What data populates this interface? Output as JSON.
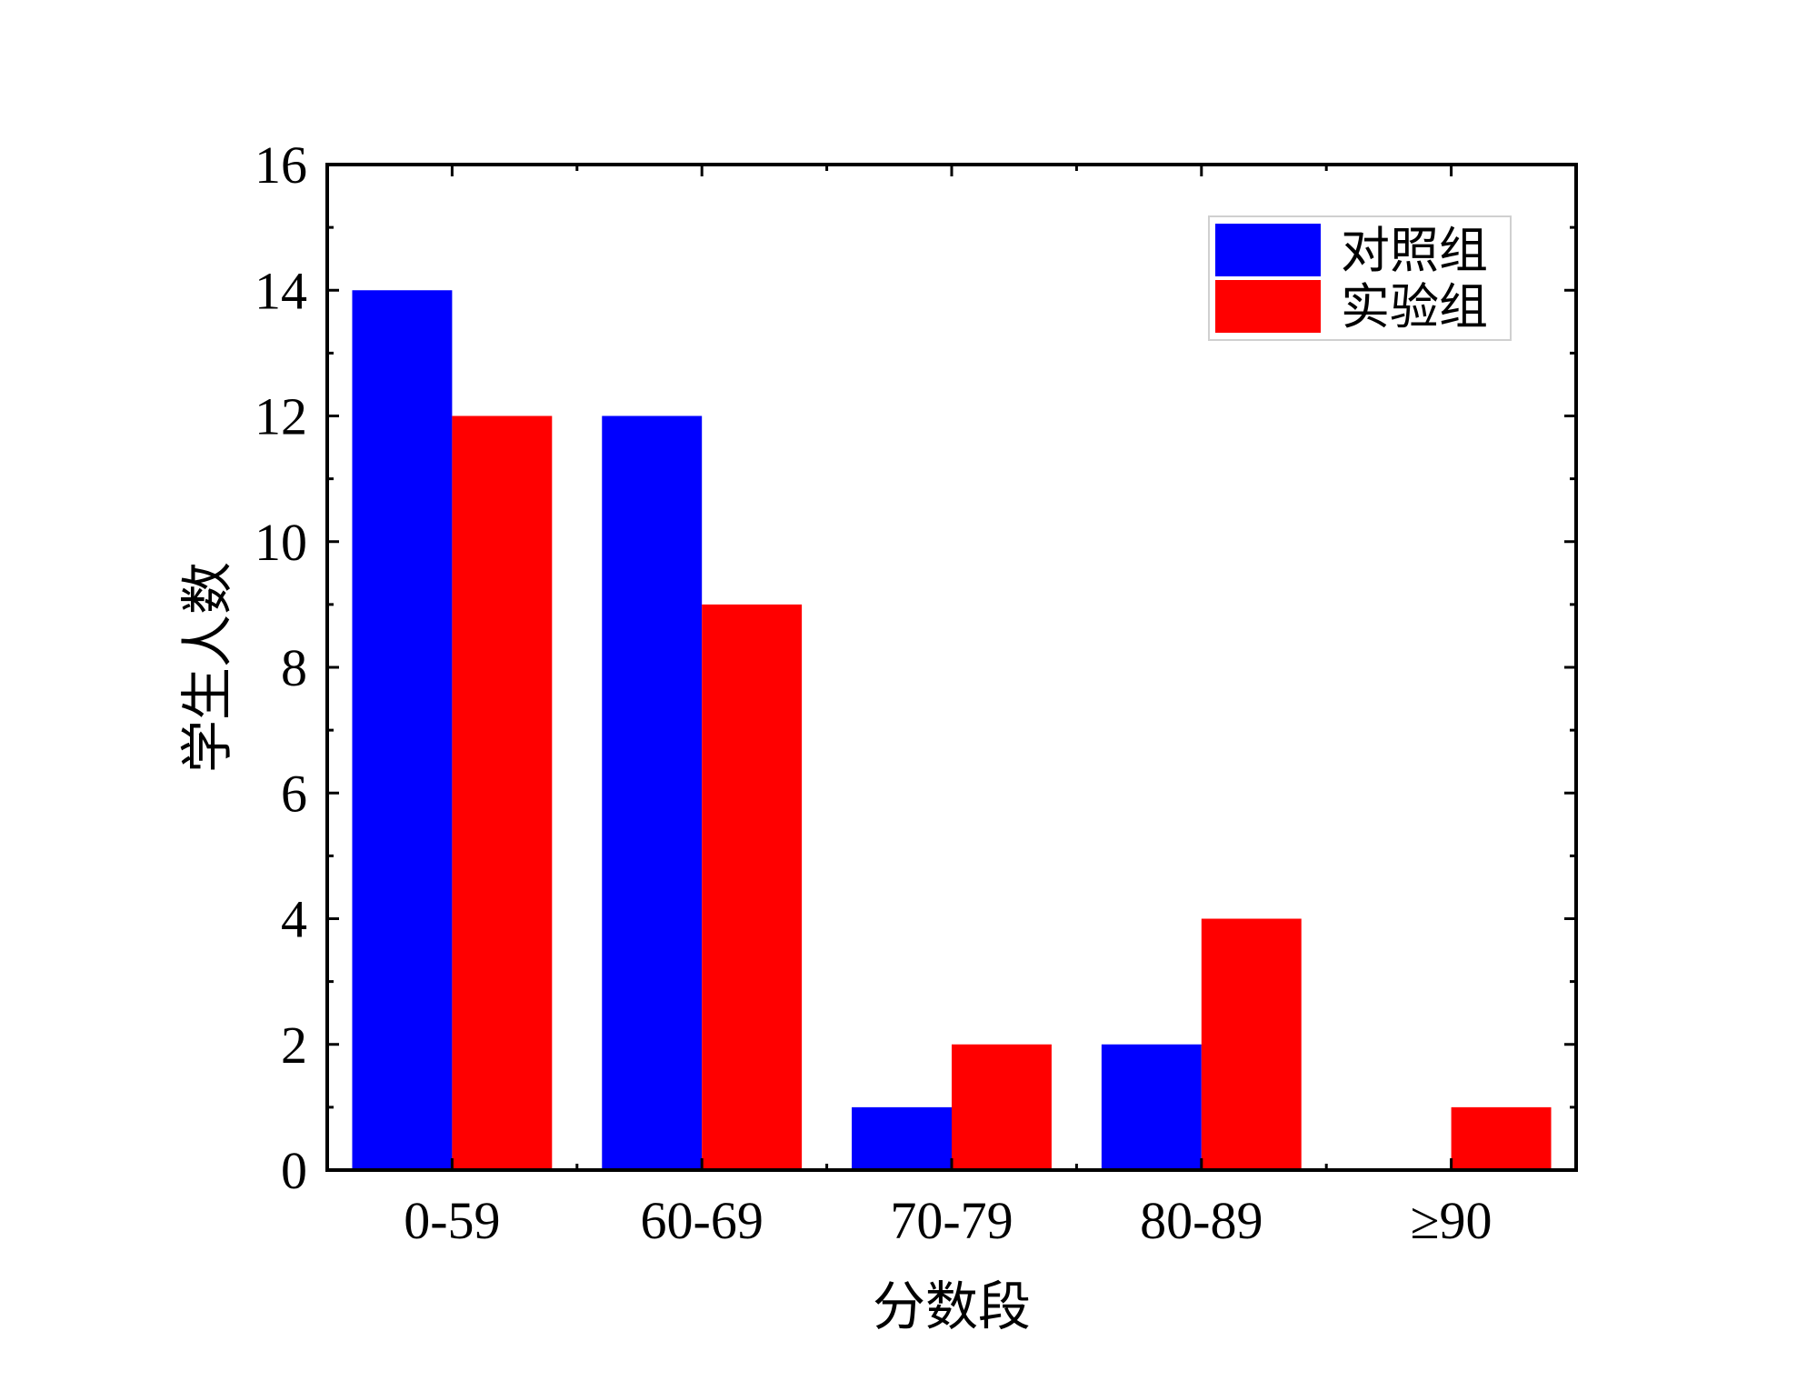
{
  "chart_data": {
    "type": "bar",
    "title": "",
    "xlabel": "分数段",
    "ylabel": "学生人数",
    "categories": [
      "0-59",
      "60-69",
      "70-79",
      "80-89",
      "≥90"
    ],
    "series": [
      {
        "name": "对照组",
        "color": "#0000ff",
        "values": [
          14,
          12,
          1,
          2,
          0
        ]
      },
      {
        "name": "实验组",
        "color": "#ff0000",
        "values": [
          12,
          9,
          2,
          4,
          1
        ]
      }
    ],
    "ylim": [
      0,
      16
    ],
    "yticks": [
      0,
      2,
      4,
      6,
      8,
      10,
      12,
      14,
      16
    ],
    "grid": false,
    "legend_position": "top-right"
  }
}
